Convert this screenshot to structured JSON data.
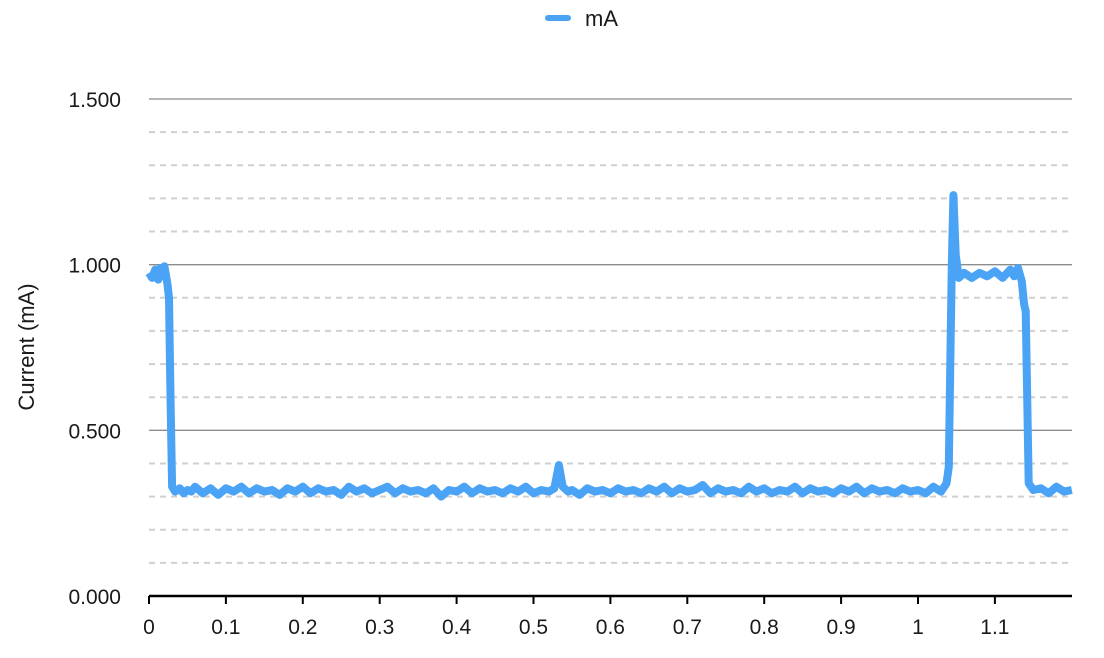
{
  "chart_data": {
    "type": "line",
    "title": "",
    "xlabel": "",
    "ylabel": "Current (mA)",
    "legend": {
      "position": "top-center"
    },
    "xlim": [
      0,
      1.2
    ],
    "ylim": [
      0,
      1.5
    ],
    "x_ticks": [
      {
        "value": 0,
        "label": "0"
      },
      {
        "value": 0.1,
        "label": "0.1"
      },
      {
        "value": 0.2,
        "label": "0.2"
      },
      {
        "value": 0.3,
        "label": "0.3"
      },
      {
        "value": 0.4,
        "label": "0.4"
      },
      {
        "value": 0.5,
        "label": "0.5"
      },
      {
        "value": 0.6,
        "label": "0.6"
      },
      {
        "value": 0.7,
        "label": "0.7"
      },
      {
        "value": 0.8,
        "label": "0.8"
      },
      {
        "value": 0.9,
        "label": "0.9"
      },
      {
        "value": 1.0,
        "label": "1"
      },
      {
        "value": 1.1,
        "label": "1.1"
      }
    ],
    "y_ticks": [
      {
        "value": 0,
        "label": "0.000"
      },
      {
        "value": 0.5,
        "label": "0.500"
      },
      {
        "value": 1.0,
        "label": "1.000"
      },
      {
        "value": 1.5,
        "label": "1.500"
      }
    ],
    "grid": {
      "major": true,
      "minor_dashed": true,
      "minor_step": 0.1
    },
    "colors": {
      "series": "#4aa3f5",
      "major_grid": "#8c8c8c",
      "minor_grid": "#d0d0d0",
      "axis": "#000000"
    },
    "series": [
      {
        "name": "mA",
        "points": [
          [
            0.0,
            0.975
          ],
          [
            0.004,
            0.96
          ],
          [
            0.008,
            0.985
          ],
          [
            0.012,
            0.955
          ],
          [
            0.015,
            0.99
          ],
          [
            0.018,
            0.965
          ],
          [
            0.02,
            0.995
          ],
          [
            0.022,
            0.97
          ],
          [
            0.024,
            0.94
          ],
          [
            0.026,
            0.9
          ],
          [
            0.028,
            0.6
          ],
          [
            0.03,
            0.33
          ],
          [
            0.034,
            0.315
          ],
          [
            0.04,
            0.325
          ],
          [
            0.045,
            0.31
          ],
          [
            0.05,
            0.32
          ],
          [
            0.055,
            0.315
          ],
          [
            0.06,
            0.33
          ],
          [
            0.07,
            0.31
          ],
          [
            0.08,
            0.325
          ],
          [
            0.09,
            0.305
          ],
          [
            0.1,
            0.325
          ],
          [
            0.11,
            0.315
          ],
          [
            0.12,
            0.33
          ],
          [
            0.13,
            0.31
          ],
          [
            0.14,
            0.325
          ],
          [
            0.15,
            0.315
          ],
          [
            0.16,
            0.32
          ],
          [
            0.17,
            0.305
          ],
          [
            0.18,
            0.325
          ],
          [
            0.19,
            0.315
          ],
          [
            0.2,
            0.33
          ],
          [
            0.21,
            0.31
          ],
          [
            0.22,
            0.325
          ],
          [
            0.23,
            0.315
          ],
          [
            0.24,
            0.32
          ],
          [
            0.25,
            0.305
          ],
          [
            0.26,
            0.33
          ],
          [
            0.27,
            0.315
          ],
          [
            0.28,
            0.325
          ],
          [
            0.29,
            0.31
          ],
          [
            0.3,
            0.32
          ],
          [
            0.31,
            0.33
          ],
          [
            0.32,
            0.31
          ],
          [
            0.33,
            0.325
          ],
          [
            0.34,
            0.315
          ],
          [
            0.35,
            0.32
          ],
          [
            0.36,
            0.31
          ],
          [
            0.37,
            0.325
          ],
          [
            0.38,
            0.3
          ],
          [
            0.39,
            0.32
          ],
          [
            0.4,
            0.315
          ],
          [
            0.41,
            0.33
          ],
          [
            0.42,
            0.31
          ],
          [
            0.43,
            0.325
          ],
          [
            0.44,
            0.315
          ],
          [
            0.45,
            0.32
          ],
          [
            0.46,
            0.31
          ],
          [
            0.47,
            0.325
          ],
          [
            0.48,
            0.315
          ],
          [
            0.49,
            0.33
          ],
          [
            0.5,
            0.31
          ],
          [
            0.51,
            0.32
          ],
          [
            0.52,
            0.315
          ],
          [
            0.527,
            0.325
          ],
          [
            0.533,
            0.395
          ],
          [
            0.538,
            0.33
          ],
          [
            0.545,
            0.315
          ],
          [
            0.55,
            0.32
          ],
          [
            0.56,
            0.305
          ],
          [
            0.57,
            0.325
          ],
          [
            0.58,
            0.315
          ],
          [
            0.59,
            0.32
          ],
          [
            0.6,
            0.31
          ],
          [
            0.61,
            0.325
          ],
          [
            0.62,
            0.315
          ],
          [
            0.63,
            0.32
          ],
          [
            0.64,
            0.31
          ],
          [
            0.65,
            0.325
          ],
          [
            0.66,
            0.315
          ],
          [
            0.67,
            0.33
          ],
          [
            0.68,
            0.31
          ],
          [
            0.69,
            0.325
          ],
          [
            0.7,
            0.315
          ],
          [
            0.71,
            0.32
          ],
          [
            0.72,
            0.335
          ],
          [
            0.73,
            0.31
          ],
          [
            0.74,
            0.325
          ],
          [
            0.75,
            0.315
          ],
          [
            0.76,
            0.32
          ],
          [
            0.77,
            0.31
          ],
          [
            0.78,
            0.33
          ],
          [
            0.79,
            0.315
          ],
          [
            0.8,
            0.325
          ],
          [
            0.81,
            0.31
          ],
          [
            0.82,
            0.32
          ],
          [
            0.83,
            0.315
          ],
          [
            0.84,
            0.33
          ],
          [
            0.85,
            0.31
          ],
          [
            0.86,
            0.325
          ],
          [
            0.87,
            0.315
          ],
          [
            0.88,
            0.32
          ],
          [
            0.89,
            0.31
          ],
          [
            0.9,
            0.325
          ],
          [
            0.91,
            0.315
          ],
          [
            0.92,
            0.33
          ],
          [
            0.93,
            0.31
          ],
          [
            0.94,
            0.325
          ],
          [
            0.95,
            0.315
          ],
          [
            0.96,
            0.32
          ],
          [
            0.97,
            0.31
          ],
          [
            0.98,
            0.325
          ],
          [
            0.99,
            0.315
          ],
          [
            1.0,
            0.32
          ],
          [
            1.01,
            0.31
          ],
          [
            1.02,
            0.33
          ],
          [
            1.03,
            0.315
          ],
          [
            1.037,
            0.34
          ],
          [
            1.04,
            0.39
          ],
          [
            1.042,
            0.7
          ],
          [
            1.044,
            1.0
          ],
          [
            1.046,
            1.21
          ],
          [
            1.049,
            1.03
          ],
          [
            1.053,
            0.96
          ],
          [
            1.06,
            0.975
          ],
          [
            1.07,
            0.96
          ],
          [
            1.08,
            0.975
          ],
          [
            1.09,
            0.965
          ],
          [
            1.1,
            0.98
          ],
          [
            1.11,
            0.96
          ],
          [
            1.12,
            0.985
          ],
          [
            1.125,
            0.965
          ],
          [
            1.13,
            0.99
          ],
          [
            1.135,
            0.95
          ],
          [
            1.138,
            0.88
          ],
          [
            1.14,
            0.86
          ],
          [
            1.142,
            0.6
          ],
          [
            1.144,
            0.34
          ],
          [
            1.15,
            0.32
          ],
          [
            1.16,
            0.325
          ],
          [
            1.17,
            0.31
          ],
          [
            1.18,
            0.33
          ],
          [
            1.19,
            0.315
          ],
          [
            1.2,
            0.32
          ]
        ]
      }
    ]
  }
}
